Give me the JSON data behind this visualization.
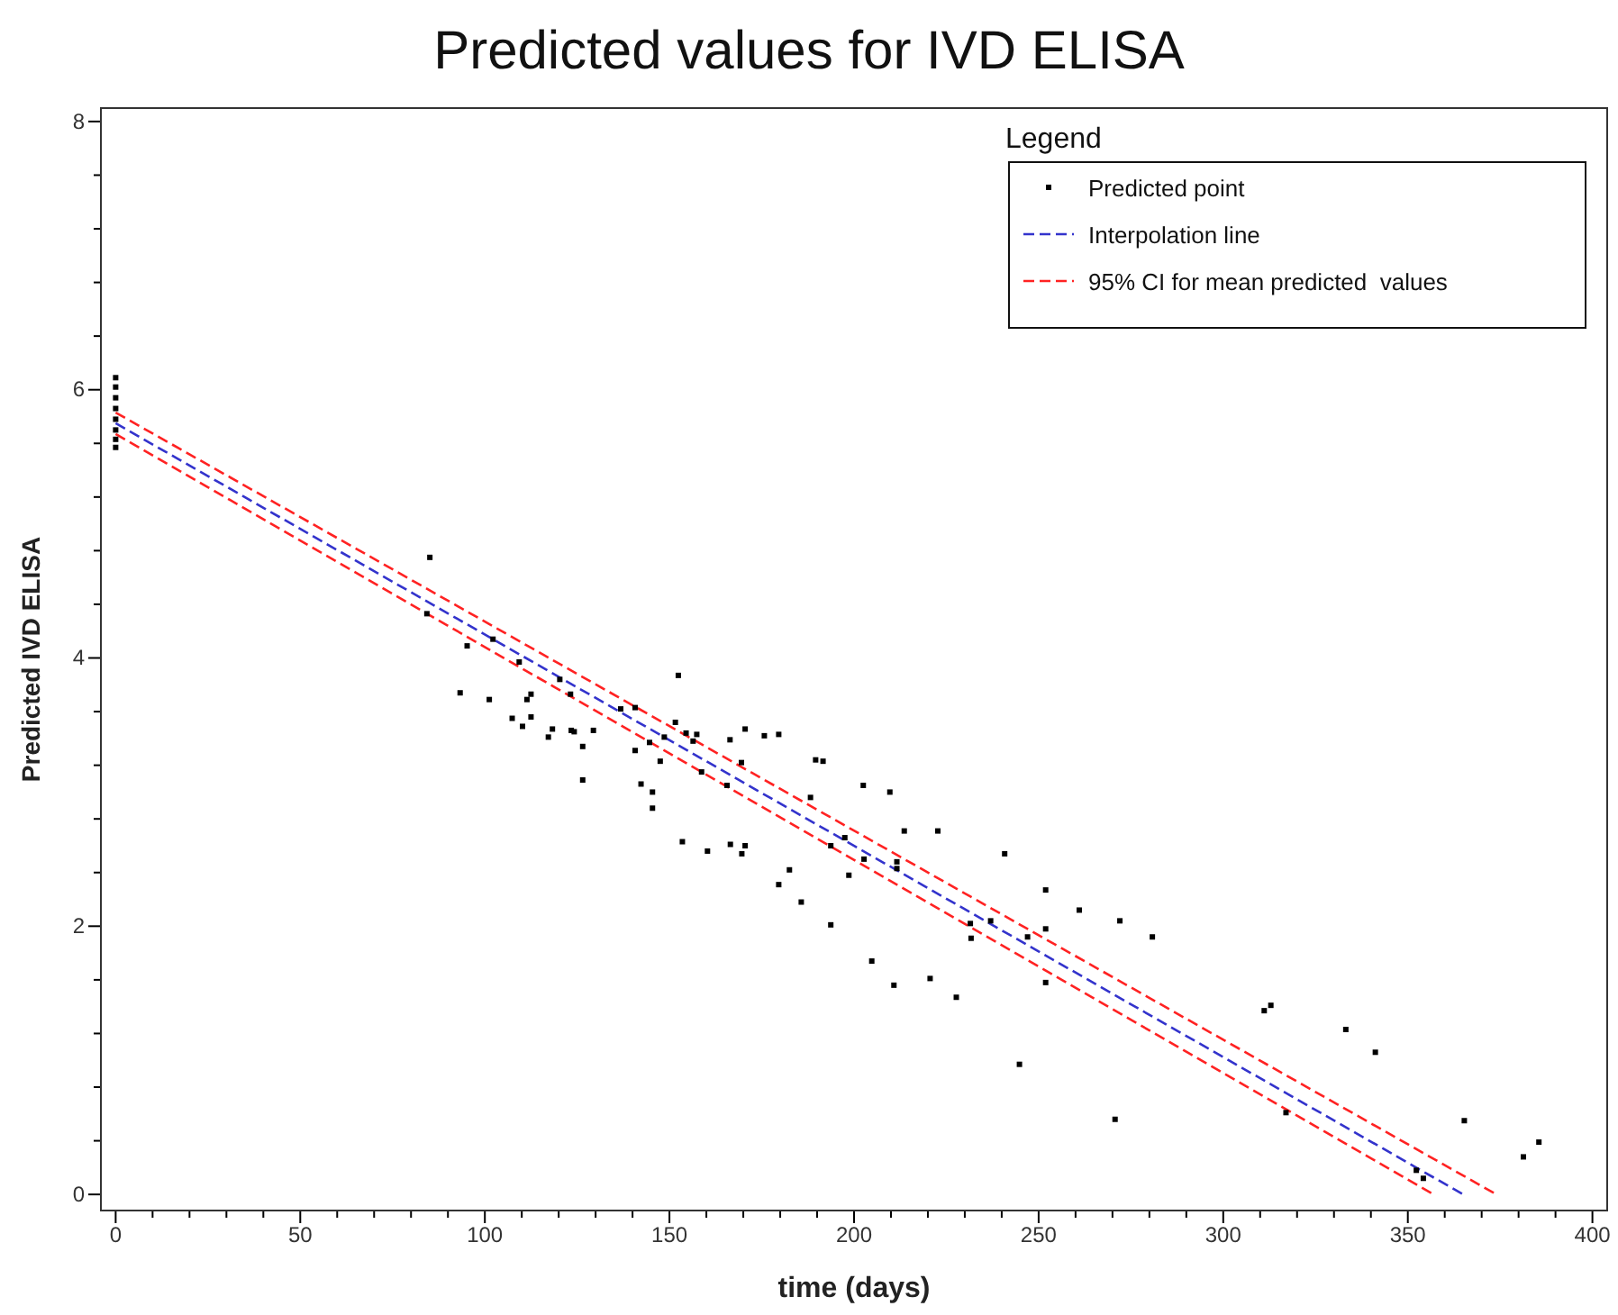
{
  "chart_data": {
    "type": "scatter",
    "title": "Predicted values for IVD ELISA",
    "xlabel": "time (days)",
    "ylabel": "Predicted  IVD ELISA",
    "legend_title": "Legend",
    "legend": "top right",
    "grid": false,
    "xlim": [
      -4,
      404
    ],
    "ylim": [
      -0.12,
      8.1
    ],
    "xticks": [
      0,
      {
        "value": 10,
        "label": null
      },
      {
        "value": 20,
        "label": null
      },
      {
        "value": 30,
        "label": null
      },
      {
        "value": 40,
        "label": null
      },
      50,
      {
        "value": 60,
        "label": null
      },
      {
        "value": 70,
        "label": null
      },
      {
        "value": 80,
        "label": null
      },
      {
        "value": 90,
        "label": null
      },
      100,
      {
        "value": 110,
        "label": null
      },
      {
        "value": 120,
        "label": null
      },
      {
        "value": 130,
        "label": null
      },
      {
        "value": 140,
        "label": null
      },
      150,
      {
        "value": 160,
        "label": null
      },
      {
        "value": 170,
        "label": null
      },
      {
        "value": 180,
        "label": null
      },
      {
        "value": 190,
        "label": null
      },
      200,
      {
        "value": 210,
        "label": null
      },
      {
        "value": 220,
        "label": null
      },
      {
        "value": 230,
        "label": null
      },
      {
        "value": 240,
        "label": null
      },
      250,
      {
        "value": 260,
        "label": null
      },
      {
        "value": 270,
        "label": null
      },
      {
        "value": 280,
        "label": null
      },
      {
        "value": 290,
        "label": null
      },
      300,
      {
        "value": 310,
        "label": null
      },
      {
        "value": 320,
        "label": null
      },
      {
        "value": 330,
        "label": null
      },
      {
        "value": 340,
        "label": null
      },
      350,
      {
        "value": 360,
        "label": null
      },
      {
        "value": 370,
        "label": null
      },
      {
        "value": 380,
        "label": null
      },
      {
        "value": 390,
        "label": null
      },
      400
    ],
    "yticks": [
      0,
      {
        "value": 0.4,
        "label": null
      },
      {
        "value": 0.8,
        "label": null
      },
      {
        "value": 1.2,
        "label": null
      },
      {
        "value": 1.6,
        "label": null
      },
      2,
      {
        "value": 2.4,
        "label": null
      },
      {
        "value": 2.8,
        "label": null
      },
      {
        "value": 3.2,
        "label": null
      },
      {
        "value": 3.6,
        "label": null
      },
      4,
      {
        "value": 4.4,
        "label": null
      },
      {
        "value": 4.8,
        "label": null
      },
      {
        "value": 5.2,
        "label": null
      },
      {
        "value": 5.6,
        "label": null
      },
      6,
      {
        "value": 6.4,
        "label": null
      },
      {
        "value": 6.8,
        "label": null
      },
      {
        "value": 7.2,
        "label": null
      },
      {
        "value": 7.6,
        "label": null
      },
      8
    ],
    "series": [
      {
        "name": "Predicted point",
        "marker": "square",
        "color": "#000000",
        "x": [
          0,
          0,
          0,
          0,
          0,
          0,
          0,
          0,
          85.1,
          84.3,
          95.2,
          102.2,
          109.3,
          93.3,
          101.2,
          111.4,
          112.5,
          107.4,
          110.2,
          112.5,
          117.2,
          118.3,
          120.3,
          123.2,
          123.4,
          124.2,
          129.4,
          126.5,
          126.5,
          136.8,
          140.7,
          140.7,
          144.6,
          147.5,
          148.6,
          152.4,
          151.6,
          154.5,
          156.4,
          157.4,
          158.7,
          142.3,
          145.4,
          145.4,
          153.5,
          160.3,
          166.5,
          170.5,
          169.6,
          165.6,
          166.4,
          170.5,
          169.5,
          175.7,
          179.6,
          182.5,
          179.6,
          185.7,
          188.2,
          189.6,
          191.6,
          202.5,
          209.7,
          197.5,
          193.7,
          202.7,
          198.6,
          211.6,
          211.6,
          213.6,
          222.7,
          193.7,
          204.8,
          210.8,
          220.6,
          227.7,
          240.8,
          231.5,
          231.7,
          237.0,
          247.0,
          251.9,
          251.9,
          251.9,
          261.0,
          272.0,
          280.8,
          244.8,
          270.7,
          311.1,
          312.9,
          333.2,
          341.2,
          317.0,
          352.3,
          354.2,
          365.3,
          381.3,
          385.5
        ],
        "values": [
          5.57,
          5.63,
          5.7,
          5.78,
          5.86,
          5.94,
          6.02,
          6.09,
          4.75,
          4.33,
          4.09,
          4.14,
          3.97,
          3.74,
          3.69,
          3.69,
          3.73,
          3.55,
          3.49,
          3.56,
          3.41,
          3.47,
          3.84,
          3.73,
          3.46,
          3.45,
          3.46,
          3.34,
          3.09,
          3.62,
          3.63,
          3.31,
          3.37,
          3.23,
          3.41,
          3.87,
          3.52,
          3.44,
          3.38,
          3.43,
          3.15,
          3.06,
          3.0,
          2.88,
          2.63,
          2.56,
          2.61,
          2.6,
          2.54,
          3.05,
          3.39,
          3.47,
          3.22,
          3.42,
          3.43,
          2.42,
          2.31,
          2.18,
          2.96,
          3.24,
          3.23,
          3.05,
          3.0,
          2.66,
          2.6,
          2.5,
          2.38,
          2.48,
          2.43,
          2.71,
          2.71,
          2.01,
          1.74,
          1.56,
          1.61,
          1.47,
          2.54,
          2.02,
          1.91,
          2.04,
          1.92,
          2.27,
          1.98,
          1.58,
          2.12,
          2.04,
          1.92,
          0.97,
          0.56,
          1.37,
          1.41,
          1.23,
          1.06,
          0.61,
          0.18,
          0.12,
          0.55,
          0.28,
          0.39
        ]
      },
      {
        "name": "Interpolation line",
        "type": "line",
        "marker": "none",
        "line_style": "dashed",
        "color": "#3333cc",
        "x": [
          0,
          365
        ],
        "values": [
          5.75,
          0
        ]
      },
      {
        "name": "95% CI for mean predicted  values",
        "type": "line",
        "marker": "none",
        "line_style": "dashed",
        "color": "#ff2222",
        "x": [
          0,
          374
        ],
        "values": [
          5.83,
          0
        ]
      },
      {
        "type": "line",
        "marker": "none",
        "line_style": "dashed",
        "color": "#ff2222",
        "x": [
          0,
          357
        ],
        "values": [
          5.67,
          0
        ]
      }
    ]
  }
}
